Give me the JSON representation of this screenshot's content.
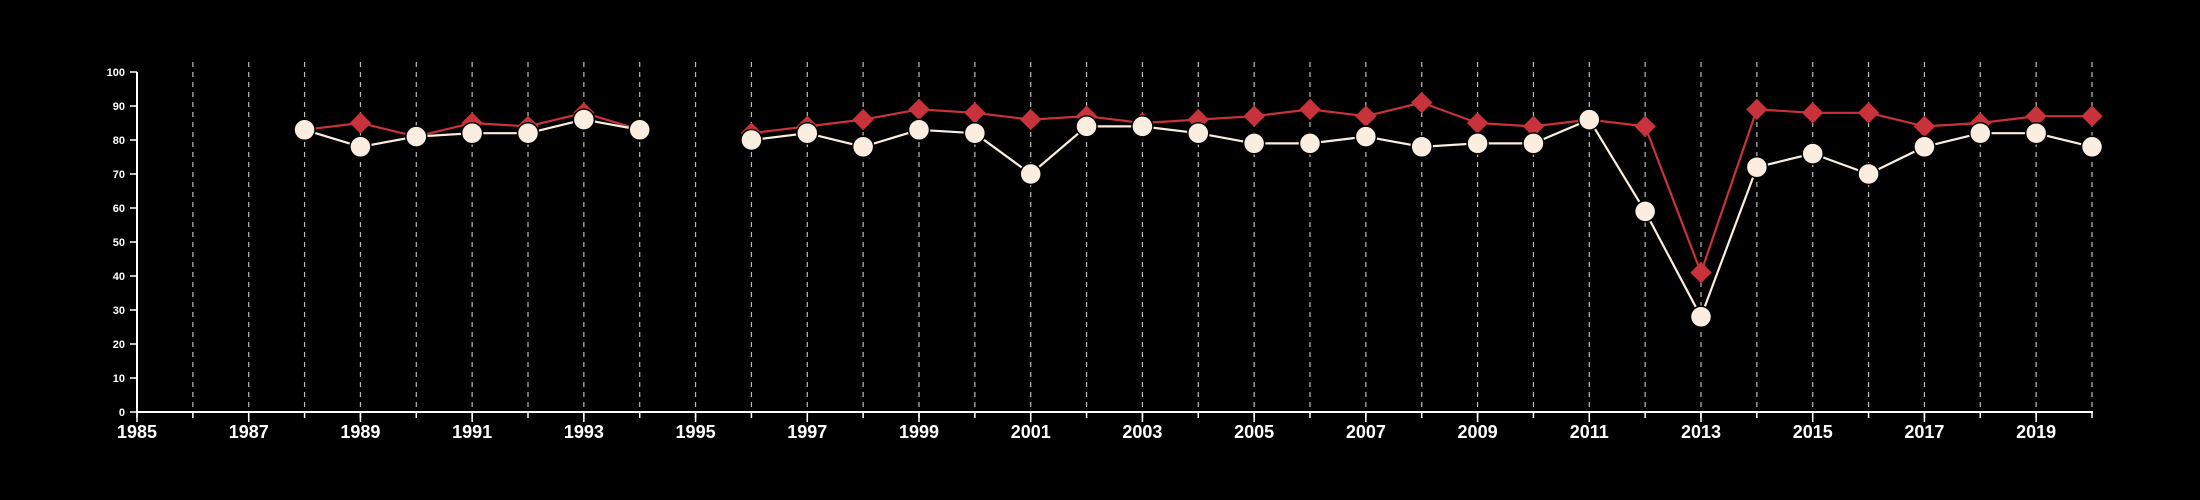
{
  "chart_data": {
    "type": "line",
    "title": "",
    "xlabel": "",
    "ylabel": "",
    "xlim": [
      1985,
      2020
    ],
    "ylim": [
      0,
      100
    ],
    "x_ticks": [
      1985,
      1987,
      1989,
      1991,
      1993,
      1995,
      1997,
      1999,
      2001,
      2003,
      2005,
      2007,
      2009,
      2011,
      2013,
      2015,
      2017,
      2019
    ],
    "x_tick_labels": [
      "1985",
      "1987",
      "1989",
      "1991",
      "1993",
      "1995",
      "1997",
      "1999",
      "2001",
      "2003",
      "2005",
      "2007",
      "2009",
      "2011",
      "2013",
      "2015",
      "2017",
      "2019"
    ],
    "y_ticks": [
      0,
      10,
      20,
      30,
      40,
      50,
      60,
      70,
      80,
      90,
      100
    ],
    "y_tick_labels": [
      "0",
      "10",
      "20",
      "30",
      "40",
      "50",
      "60",
      "70",
      "80",
      "90",
      "100"
    ],
    "grid": "vertical dashed lines at each year",
    "legend": "none",
    "x": [
      1988,
      1989,
      1990,
      1991,
      1992,
      1993,
      1994,
      1995,
      1996,
      1997,
      1998,
      1999,
      2000,
      2001,
      2002,
      2003,
      2004,
      2005,
      2006,
      2007,
      2008,
      2009,
      2010,
      2011,
      2012,
      2013,
      2014,
      2015,
      2016,
      2017,
      2018,
      2019,
      2020
    ],
    "series": [
      {
        "marker": "diamond",
        "color": "#c8323a",
        "values": [
          83,
          85,
          81,
          85,
          84,
          88,
          83,
          null,
          82,
          84,
          86,
          89,
          88,
          86,
          87,
          85,
          86,
          87,
          89,
          87,
          91,
          85,
          84,
          86,
          84,
          41,
          89,
          88,
          88,
          84,
          85,
          87,
          87
        ]
      },
      {
        "marker": "circle",
        "color": "#fbeee0",
        "values": [
          83,
          78,
          81,
          82,
          82,
          86,
          83,
          null,
          80,
          82,
          78,
          83,
          82,
          70,
          84,
          84,
          82,
          79,
          79,
          81,
          78,
          79,
          79,
          86,
          59,
          28,
          72,
          76,
          70,
          78,
          82,
          82,
          78
        ]
      }
    ]
  }
}
